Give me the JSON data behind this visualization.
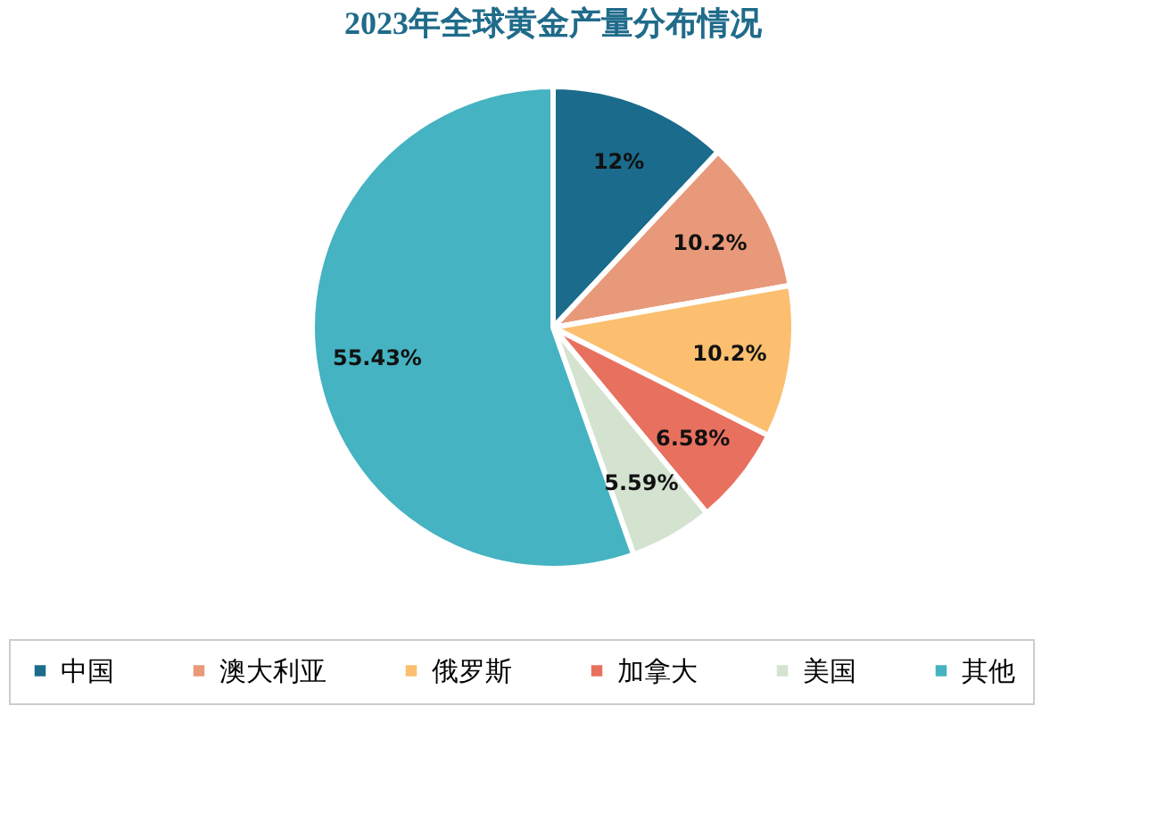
{
  "chart_data": {
    "type": "pie",
    "title": "2023年全球黄金产量分布情况",
    "categories": [
      "中国",
      "澳大利亚",
      "俄罗斯",
      "加拿大",
      "美国",
      "其他"
    ],
    "values": [
      12,
      10.2,
      10.2,
      6.58,
      5.59,
      55.43
    ],
    "colors": [
      "#1b6b8c",
      "#e8997a",
      "#fbbf6f",
      "#e8705f",
      "#d4e2d0",
      "#45b3c1"
    ],
    "value_labels": [
      "12%",
      "10.2%",
      "10.2%",
      "6.58%",
      "5.59%",
      "55.43%"
    ],
    "legend": "bottom"
  }
}
